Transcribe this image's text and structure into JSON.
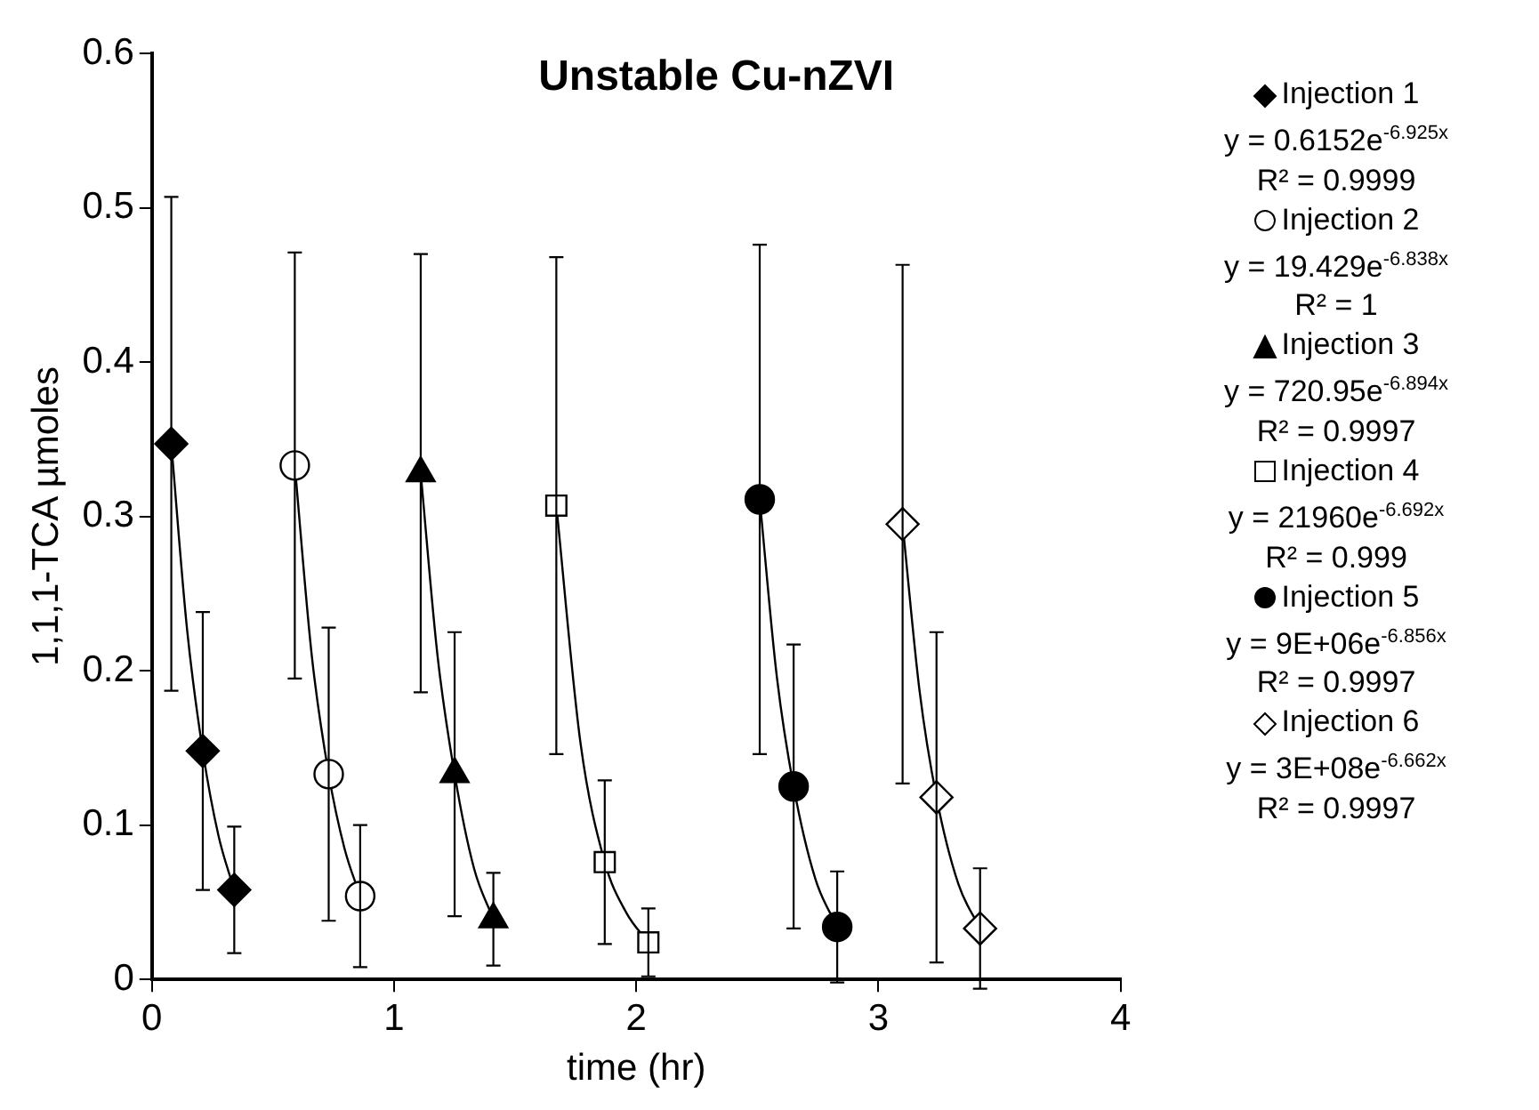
{
  "chart_data": {
    "type": "scatter",
    "title": "Unstable Cu-nZVI",
    "xlabel": "time (hr)",
    "ylabel": "1,1,1-TCA µmoles",
    "xlim": [
      0,
      4
    ],
    "xticks": [
      0,
      1,
      2,
      3,
      4
    ],
    "ylim": [
      0,
      0.6
    ],
    "yticks": [
      0,
      0.1,
      0.2,
      0.3,
      0.4,
      0.5,
      0.6
    ],
    "grid": false,
    "legend": "right",
    "series": [
      {
        "name": "Injection 1",
        "color": "#000000",
        "marker": "diamond",
        "x": [
          0.08,
          0.21,
          0.34
        ],
        "values": [
          0.347,
          0.148,
          0.058
        ],
        "errors": [
          0.16,
          0.09,
          0.041
        ]
      },
      {
        "name": "Injection 2",
        "color": "#ffffff",
        "marker": "circle",
        "x": [
          0.59,
          0.73,
          0.86
        ],
        "values": [
          0.333,
          0.133,
          0.054
        ],
        "errors": [
          0.138,
          0.095,
          0.046
        ]
      },
      {
        "name": "Injection 3",
        "color": "#000000",
        "marker": "triangle",
        "x": [
          1.11,
          1.25,
          1.41
        ],
        "values": [
          0.328,
          0.133,
          0.039
        ],
        "errors": [
          0.142,
          0.092,
          0.03
        ]
      },
      {
        "name": "Injection 4",
        "color": "#ffffff",
        "marker": "square",
        "x": [
          1.67,
          1.87,
          2.05
        ],
        "values": [
          0.307,
          0.076,
          0.024
        ],
        "errors": [
          0.161,
          0.053,
          0.022
        ]
      },
      {
        "name": "Injection 5",
        "color": "#000000",
        "marker": "circle",
        "x": [
          2.51,
          2.65,
          2.83
        ],
        "values": [
          0.311,
          0.125,
          0.034
        ],
        "errors": [
          0.165,
          0.092,
          0.036
        ]
      },
      {
        "name": "Injection 6",
        "color": "#ffffff",
        "marker": "diamond",
        "x": [
          3.1,
          3.24,
          3.42
        ],
        "values": [
          0.295,
          0.118,
          0.033
        ],
        "errors": [
          0.168,
          0.107,
          0.039
        ]
      },
      {
        "type": "line",
        "color": "#000000",
        "marker": "none",
        "x": [
          0.08,
          0.145,
          0.21,
          0.275,
          0.34
        ],
        "values": [
          0.347,
          0.227,
          0.148,
          0.093,
          0.058
        ]
      },
      {
        "type": "line",
        "color": "#000000",
        "marker": "none",
        "x": [
          0.59,
          0.66,
          0.73,
          0.795,
          0.86
        ],
        "values": [
          0.333,
          0.21,
          0.133,
          0.085,
          0.054
        ]
      },
      {
        "type": "line",
        "color": "#000000",
        "marker": "none",
        "x": [
          1.11,
          1.18,
          1.25,
          1.33,
          1.41
        ],
        "values": [
          0.328,
          0.209,
          0.133,
          0.072,
          0.039
        ]
      },
      {
        "type": "line",
        "color": "#000000",
        "marker": "none",
        "x": [
          1.67,
          1.77,
          1.87,
          1.96,
          2.05
        ],
        "values": [
          0.307,
          0.153,
          0.076,
          0.043,
          0.024
        ]
      },
      {
        "type": "line",
        "color": "#000000",
        "marker": "none",
        "x": [
          2.51,
          2.58,
          2.65,
          2.74,
          2.83
        ],
        "values": [
          0.311,
          0.197,
          0.125,
          0.065,
          0.034
        ]
      },
      {
        "type": "line",
        "color": "#000000",
        "marker": "none",
        "x": [
          3.1,
          3.17,
          3.24,
          3.33,
          3.42
        ],
        "values": [
          0.295,
          0.187,
          0.118,
          0.062,
          0.033
        ]
      }
    ],
    "annotations": [
      "y = 0.6152e$^{-6.925x}$",
      "R² = 0.9999",
      "y = 19.429e$^{-6.838x}$",
      "R² = 1",
      "y = 720.95e$^{-6.894x}$",
      "R² = 0.9997",
      "y = 21960e$^{-6.692x}$",
      "R² = 0.999",
      "y = 9E+06e$^{-6.856x}$",
      "R² = 0.9997",
      "y = 3E+08e$^{-6.662x}$",
      "R² = 0.9997"
    ]
  }
}
